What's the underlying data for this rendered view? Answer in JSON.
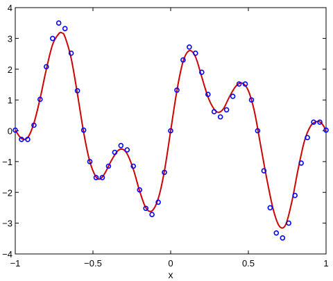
{
  "chart_data": {
    "type": "scatter",
    "title": "",
    "xlabel": "x",
    "ylabel": "",
    "xlim": [
      -1,
      1
    ],
    "ylim": [
      -4,
      4
    ],
    "xticks": [
      -1,
      -0.5,
      0,
      0.5,
      1
    ],
    "yticks": [
      -4,
      -3,
      -2,
      -1,
      0,
      1,
      2,
      3,
      4
    ],
    "xtick_labels": [
      "−1",
      "−0.5",
      "0",
      "0.5",
      "1"
    ],
    "ytick_labels": [
      "−4",
      "−3",
      "−2",
      "−1",
      "0",
      "1",
      "2",
      "3",
      "4"
    ],
    "grid": false,
    "series": [
      {
        "kind": "markers",
        "marker": "circle",
        "color": "#0000ff",
        "x": [
          -1.0,
          -0.96,
          -0.92,
          -0.88,
          -0.84,
          -0.8,
          -0.76,
          -0.72,
          -0.68,
          -0.64,
          -0.6,
          -0.56,
          -0.52,
          -0.48,
          -0.44,
          -0.4,
          -0.36,
          -0.32,
          -0.28,
          -0.24,
          -0.2,
          -0.16,
          -0.12,
          -0.08,
          -0.04,
          0.0,
          0.04,
          0.08,
          0.12,
          0.16,
          0.2,
          0.24,
          0.28,
          0.32,
          0.36,
          0.4,
          0.44,
          0.48,
          0.52,
          0.56,
          0.6,
          0.64,
          0.68,
          0.72,
          0.76,
          0.8,
          0.84,
          0.88,
          0.92,
          0.96,
          1.0
        ],
        "y": [
          0.02,
          -0.28,
          -0.28,
          0.18,
          1.02,
          2.08,
          3.0,
          3.5,
          3.32,
          2.52,
          1.3,
          0.02,
          -1.0,
          -1.52,
          -1.52,
          -1.15,
          -0.7,
          -0.48,
          -0.62,
          -1.15,
          -1.92,
          -2.52,
          -2.72,
          -2.32,
          -1.35,
          0.0,
          1.32,
          2.3,
          2.72,
          2.52,
          1.9,
          1.18,
          0.62,
          0.45,
          0.68,
          1.12,
          1.52,
          1.52,
          1.0,
          0.0,
          -1.3,
          -2.5,
          -3.32,
          -3.48,
          -3.0,
          -2.1,
          -1.05,
          -0.22,
          0.28,
          0.28,
          0.02
        ]
      },
      {
        "kind": "line",
        "color": "#cc0000",
        "x": [
          -1.0,
          -0.96,
          -0.92,
          -0.88,
          -0.84,
          -0.8,
          -0.76,
          -0.72,
          -0.7,
          -0.68,
          -0.64,
          -0.6,
          -0.56,
          -0.52,
          -0.48,
          -0.45,
          -0.42,
          -0.38,
          -0.34,
          -0.31,
          -0.28,
          -0.24,
          -0.2,
          -0.16,
          -0.12,
          -0.08,
          -0.04,
          0.0,
          0.04,
          0.08,
          0.12,
          0.16,
          0.2,
          0.24,
          0.28,
          0.31,
          0.34,
          0.38,
          0.42,
          0.46,
          0.5,
          0.54,
          0.58,
          0.62,
          0.66,
          0.7,
          0.74,
          0.78,
          0.82,
          0.86,
          0.9,
          0.94,
          0.97,
          1.0
        ],
        "y": [
          0.02,
          -0.25,
          -0.22,
          0.25,
          1.05,
          2.0,
          2.8,
          3.15,
          3.18,
          3.05,
          2.35,
          1.2,
          -0.05,
          -1.0,
          -1.5,
          -1.55,
          -1.35,
          -0.95,
          -0.65,
          -0.6,
          -0.75,
          -1.25,
          -1.95,
          -2.5,
          -2.6,
          -2.2,
          -1.3,
          0.0,
          1.3,
          2.25,
          2.6,
          2.4,
          1.75,
          1.1,
          0.7,
          0.6,
          0.72,
          1.12,
          1.45,
          1.55,
          1.3,
          0.6,
          -0.5,
          -1.6,
          -2.55,
          -3.1,
          -3.05,
          -2.3,
          -1.25,
          -0.35,
          0.15,
          0.3,
          0.25,
          0.02
        ]
      }
    ]
  }
}
